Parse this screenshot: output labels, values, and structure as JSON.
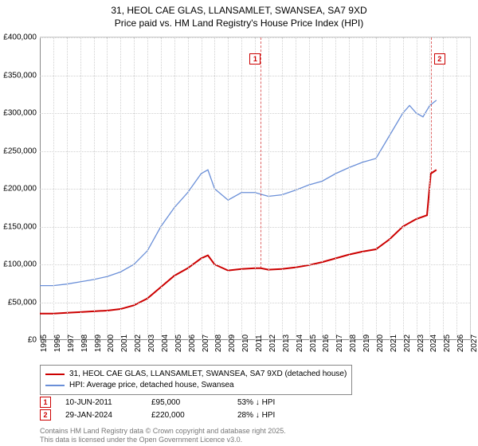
{
  "title_line1": "31, HEOL CAE GLAS, LLANSAMLET, SWANSEA, SA7 9XD",
  "title_line2": "Price paid vs. HM Land Registry's House Price Index (HPI)",
  "chart": {
    "type": "line",
    "x_min": 1995,
    "x_max": 2027,
    "x_ticks": [
      1995,
      1996,
      1997,
      1998,
      1999,
      2000,
      2001,
      2002,
      2003,
      2004,
      2005,
      2006,
      2007,
      2008,
      2009,
      2010,
      2011,
      2012,
      2013,
      2014,
      2015,
      2016,
      2017,
      2018,
      2019,
      2020,
      2021,
      2022,
      2023,
      2024,
      2025,
      2026,
      2027
    ],
    "y_min": 0,
    "y_max": 400000,
    "y_ticks": [
      0,
      50000,
      100000,
      150000,
      200000,
      250000,
      300000,
      350000,
      400000
    ],
    "y_tick_labels": [
      "£0",
      "£50,000",
      "£100,000",
      "£150,000",
      "£200,000",
      "£250,000",
      "£300,000",
      "£350,000",
      "£400,000"
    ],
    "grid_color": "#d0d0d0",
    "background_color": "#ffffff",
    "series": [
      {
        "name": "price_paid",
        "label": "31, HEOL CAE GLAS, LLANSAMLET, SWANSEA, SA7 9XD (detached house)",
        "color": "#cc0000",
        "width": 2,
        "points": [
          [
            1995,
            35000
          ],
          [
            1996,
            35000
          ],
          [
            1997,
            36000
          ],
          [
            1998,
            37000
          ],
          [
            1999,
            38000
          ],
          [
            2000,
            39000
          ],
          [
            2001,
            41000
          ],
          [
            2002,
            46000
          ],
          [
            2003,
            55000
          ],
          [
            2004,
            70000
          ],
          [
            2005,
            85000
          ],
          [
            2006,
            95000
          ],
          [
            2007,
            108000
          ],
          [
            2007.5,
            112000
          ],
          [
            2008,
            100000
          ],
          [
            2009,
            92000
          ],
          [
            2010,
            94000
          ],
          [
            2011,
            95000
          ],
          [
            2011.44,
            95000
          ],
          [
            2012,
            93000
          ],
          [
            2013,
            94000
          ],
          [
            2014,
            96000
          ],
          [
            2015,
            99000
          ],
          [
            2016,
            103000
          ],
          [
            2017,
            108000
          ],
          [
            2018,
            113000
          ],
          [
            2019,
            117000
          ],
          [
            2020,
            120000
          ],
          [
            2021,
            133000
          ],
          [
            2022,
            150000
          ],
          [
            2023,
            160000
          ],
          [
            2023.8,
            165000
          ],
          [
            2024.08,
            220000
          ],
          [
            2024.5,
            225000
          ]
        ]
      },
      {
        "name": "hpi",
        "label": "HPI: Average price, detached house, Swansea",
        "color": "#6a8fd8",
        "width": 1.3,
        "points": [
          [
            1995,
            72000
          ],
          [
            1996,
            72000
          ],
          [
            1997,
            74000
          ],
          [
            1998,
            77000
          ],
          [
            1999,
            80000
          ],
          [
            2000,
            84000
          ],
          [
            2001,
            90000
          ],
          [
            2002,
            100000
          ],
          [
            2003,
            118000
          ],
          [
            2004,
            150000
          ],
          [
            2005,
            175000
          ],
          [
            2006,
            195000
          ],
          [
            2007,
            220000
          ],
          [
            2007.5,
            225000
          ],
          [
            2008,
            200000
          ],
          [
            2009,
            185000
          ],
          [
            2010,
            195000
          ],
          [
            2011,
            195000
          ],
          [
            2012,
            190000
          ],
          [
            2013,
            192000
          ],
          [
            2014,
            198000
          ],
          [
            2015,
            205000
          ],
          [
            2016,
            210000
          ],
          [
            2017,
            220000
          ],
          [
            2018,
            228000
          ],
          [
            2019,
            235000
          ],
          [
            2020,
            240000
          ],
          [
            2021,
            270000
          ],
          [
            2022,
            300000
          ],
          [
            2022.5,
            310000
          ],
          [
            2023,
            300000
          ],
          [
            2023.5,
            295000
          ],
          [
            2024,
            310000
          ],
          [
            2024.5,
            317000
          ]
        ]
      }
    ],
    "markers": [
      {
        "n": "1",
        "x": 2011.44,
        "box_x_offset": -8,
        "line_from_y": 95000
      },
      {
        "n": "2",
        "x": 2024.08,
        "box_x_offset": 10,
        "line_from_y": 220000
      }
    ]
  },
  "legend": {
    "s0": "31, HEOL CAE GLAS, LLANSAMLET, SWANSEA, SA7 9XD (detached house)",
    "s1": "HPI: Average price, detached house, Swansea"
  },
  "events": [
    {
      "n": "1",
      "date": "10-JUN-2011",
      "price": "£95,000",
      "delta": "53% ↓ HPI"
    },
    {
      "n": "2",
      "date": "29-JAN-2024",
      "price": "£220,000",
      "delta": "28% ↓ HPI"
    }
  ],
  "footer_line1": "Contains HM Land Registry data © Crown copyright and database right 2025.",
  "footer_line2": "This data is licensed under the Open Government Licence v3.0."
}
